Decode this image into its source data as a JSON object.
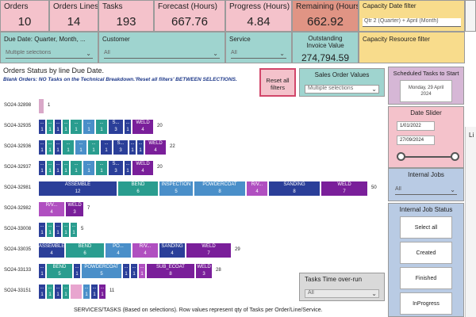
{
  "kpis": {
    "orders": {
      "label": "Orders",
      "value": "10"
    },
    "order_lines": {
      "label": "Orders Lines",
      "value": "14"
    },
    "tasks": {
      "label": "Tasks",
      "value": "193"
    },
    "forecast": {
      "label": "Forecast (Hours)",
      "value": "667.76"
    },
    "progress": {
      "label": "Progress (Hours)",
      "value": "4.84"
    },
    "remaining": {
      "label": "Remaining (Hours)",
      "value": "662.92"
    }
  },
  "capacity_date_filter": {
    "label": "Capacity Date filter",
    "value": "Qtr 2 (Quarter) + April (Month)"
  },
  "filters": {
    "due_date": {
      "label": "Due Date: Quarter, Month, ...",
      "value": "Multiple selections"
    },
    "customer": {
      "label": "Customer",
      "value": "All"
    },
    "service": {
      "label": "Service",
      "value": "All"
    }
  },
  "outstanding_invoice": {
    "label": "Outstanding Invoice Value",
    "value": "274,794.59"
  },
  "capacity_resource_filter": {
    "label": "Capacity Resource filter"
  },
  "orders_status_title": "Orders Status by line Due Date.",
  "blank_orders_note": "Blank Orders: NO Tasks on the Technical Breakdown.'Reset all filters' BETWEEN SELECTIONS.",
  "reset_button": "Reset all filters",
  "sales_order_values": {
    "label": "Sales Order Values",
    "value": "Multiple selections"
  },
  "scheduled_tasks": {
    "label": "Scheduled Tasks to Start",
    "date": "Monday, 29 April 2024"
  },
  "date_slider": {
    "label": "Date Slider",
    "from": "1/01/2022",
    "to": "27/09/2024"
  },
  "internal_jobs": {
    "label": "Internal Jobs",
    "value": "All"
  },
  "internal_job_status": {
    "label": "Internal Job Status",
    "options": [
      "Select all",
      "Created",
      "Finished",
      "InProgress"
    ]
  },
  "tasks_time_overrun": {
    "label": "Tasks Time over-run",
    "value": "All"
  },
  "footer_note": "SERVICES/TASKS (Based on selections). Row values represent qty of Tasks per Order/Line/Service.",
  "right_edge_letter": "Li",
  "rows": [
    {
      "id": "SO24-32898",
      "total": "1",
      "segs": [
        {
          "c": "#d9a8c8",
          "n": "",
          "v": "",
          "w": 8
        }
      ]
    },
    {
      "id": "SO24-32935",
      "total": "20",
      "segs": [
        {
          "c": "#2b3f99",
          "n": "...",
          "v": "1",
          "w": 10
        },
        {
          "c": "#2a9d8f",
          "n": "...",
          "v": "1",
          "w": 10
        },
        {
          "c": "#2b3f99",
          "n": "...",
          "v": "1",
          "w": 10
        },
        {
          "c": "#2a9d8f",
          "n": "...",
          "v": "1",
          "w": 10
        },
        {
          "c": "#2a9d8f",
          "n": "...",
          "v": "1",
          "w": 16
        },
        {
          "c": "#4a8fc9",
          "n": "...",
          "v": "1",
          "w": 16
        },
        {
          "c": "#2a9d8f",
          "n": "...",
          "v": "1",
          "w": 16
        },
        {
          "c": "#2b3f99",
          "n": "S...",
          "v": "3",
          "w": 20
        },
        {
          "c": "#2b3f99",
          "n": "...",
          "v": "1",
          "w": 10
        },
        {
          "c": "#7a1f9a",
          "n": "WELD",
          "v": "4",
          "w": 28
        }
      ]
    },
    {
      "id": "SO24-32936",
      "total": "22",
      "segs": [
        {
          "c": "#2b3f99",
          "n": "...",
          "v": "1",
          "w": 10
        },
        {
          "c": "#2a9d8f",
          "n": "...",
          "v": "1",
          "w": 10
        },
        {
          "c": "#2b3f99",
          "n": "...",
          "v": "1",
          "w": 10
        },
        {
          "c": "#2a9d8f",
          "n": "...",
          "v": "1",
          "w": 16
        },
        {
          "c": "#4a8fc9",
          "n": "...",
          "v": "1",
          "w": 16
        },
        {
          "c": "#2a9d8f",
          "n": "...",
          "v": "1",
          "w": 16
        },
        {
          "c": "#2b3f99",
          "n": "...",
          "v": "1",
          "w": 16
        },
        {
          "c": "#2b3f99",
          "n": "S...",
          "v": "3",
          "w": 20
        },
        {
          "c": "#2b3f99",
          "n": "...",
          "v": "1",
          "w": 10
        },
        {
          "c": "#2b3f99",
          "n": "...",
          "v": "1",
          "w": 10
        },
        {
          "c": "#7a1f9a",
          "n": "WELD",
          "v": "4",
          "w": 28
        }
      ]
    },
    {
      "id": "SO24-32937",
      "total": "20",
      "segs": [
        {
          "c": "#2b3f99",
          "n": "...",
          "v": "1",
          "w": 10
        },
        {
          "c": "#2a9d8f",
          "n": "...",
          "v": "1",
          "w": 10
        },
        {
          "c": "#2b3f99",
          "n": "...",
          "v": "1",
          "w": 10
        },
        {
          "c": "#2a9d8f",
          "n": "...",
          "v": "1",
          "w": 10
        },
        {
          "c": "#2a9d8f",
          "n": "...",
          "v": "1",
          "w": 16
        },
        {
          "c": "#4a8fc9",
          "n": "...",
          "v": "1",
          "w": 16
        },
        {
          "c": "#2a9d8f",
          "n": "...",
          "v": "1",
          "w": 16
        },
        {
          "c": "#2b3f99",
          "n": "S...",
          "v": "3",
          "w": 20
        },
        {
          "c": "#2b3f99",
          "n": "...",
          "v": "1",
          "w": 10
        },
        {
          "c": "#7a1f9a",
          "n": "WELD",
          "v": "4",
          "w": 28
        }
      ]
    },
    {
      "id": "SO24-32981",
      "total": "50",
      "segs": [
        {
          "c": "#2b3f99",
          "n": "ASSEMBLE",
          "v": "12",
          "w": 100
        },
        {
          "c": "#2a9d8f",
          "n": "BEND",
          "v": "6",
          "w": 52
        },
        {
          "c": "#4a8fc9",
          "n": "INSPECTION",
          "v": "5",
          "w": 44
        },
        {
          "c": "#4a8fc9",
          "n": "POWDERCOAT",
          "v": "8",
          "w": 66
        },
        {
          "c": "#b04fc0",
          "n": "R/V...",
          "v": "4",
          "w": 28
        },
        {
          "c": "#2b3f99",
          "n": "SANDING",
          "v": "8",
          "w": 66
        },
        {
          "c": "#7a1f9a",
          "n": "WELD",
          "v": "7",
          "w": 60
        }
      ]
    },
    {
      "id": "SO24-32982",
      "total": "7",
      "segs": [
        {
          "c": "#b04fc0",
          "n": "R/V...",
          "v": "4",
          "w": 34
        },
        {
          "c": "#7a1f9a",
          "n": "WELD",
          "v": "3",
          "w": 24
        }
      ]
    },
    {
      "id": "SO24-33008",
      "total": "5",
      "segs": [
        {
          "c": "#2b3f99",
          "n": "...",
          "v": "1",
          "w": 10
        },
        {
          "c": "#2a9d8f",
          "n": "...",
          "v": "1",
          "w": 10
        },
        {
          "c": "#2b3f99",
          "n": "...",
          "v": "1",
          "w": 10
        },
        {
          "c": "#2a9d8f",
          "n": "...",
          "v": "1",
          "w": 10
        },
        {
          "c": "#2a9d8f",
          "n": "...",
          "v": "1",
          "w": 10
        }
      ]
    },
    {
      "id": "SO24-33035",
      "total": "29",
      "segs": [
        {
          "c": "#2b3f99",
          "n": "ASSEMBLE",
          "v": "4",
          "w": 34
        },
        {
          "c": "#2a9d8f",
          "n": "BEND",
          "v": "6",
          "w": 50
        },
        {
          "c": "#4a8fc9",
          "n": "PO...",
          "v": "4",
          "w": 34
        },
        {
          "c": "#b04fc0",
          "n": "R/V...",
          "v": "4",
          "w": 34
        },
        {
          "c": "#2b3f99",
          "n": "SANDING",
          "v": "4",
          "w": 34
        },
        {
          "c": "#7a1f9a",
          "n": "WELD",
          "v": "7",
          "w": 58
        }
      ]
    },
    {
      "id": "SO24-33133",
      "total": "28",
      "segs": [
        {
          "c": "#2b3f99",
          "n": "...",
          "v": "1",
          "w": 10
        },
        {
          "c": "#2a9d8f",
          "n": "BEND",
          "v": "5",
          "w": 34
        },
        {
          "c": "#2b3f99",
          "n": "...",
          "v": "1",
          "w": 10
        },
        {
          "c": "#4a8fc9",
          "n": "POWDERCOAT",
          "v": "5",
          "w": 52
        },
        {
          "c": "#2b3f99",
          "n": "...",
          "v": "1",
          "w": 10
        },
        {
          "c": "#2b3f99",
          "n": "...",
          "v": "1",
          "w": 10
        },
        {
          "c": "#b04fc0",
          "n": "...",
          "v": "1",
          "w": 10
        },
        {
          "c": "#7a1f9a",
          "n": "SUB_ECOAT",
          "v": "8",
          "w": 62
        },
        {
          "c": "#7a1f9a",
          "n": "WELD",
          "v": "3",
          "w": 22
        }
      ]
    },
    {
      "id": "SO24-33151",
      "total": "11",
      "segs": [
        {
          "c": "#2b3f99",
          "n": "...",
          "v": "1",
          "w": 10
        },
        {
          "c": "#2a9d8f",
          "n": "...",
          "v": "1",
          "w": 10
        },
        {
          "c": "#2b3f99",
          "n": "...",
          "v": "1",
          "w": 10
        },
        {
          "c": "#2a9d8f",
          "n": "...",
          "v": "1",
          "w": 10
        },
        {
          "c": "#e8a5cf",
          "n": "",
          "v": "",
          "w": 16
        },
        {
          "c": "#4a8fc9",
          "n": "...",
          "v": "1",
          "w": 10
        },
        {
          "c": "#2b3f99",
          "n": "...",
          "v": "1",
          "w": 10
        },
        {
          "c": "#7a1f9a",
          "n": "...",
          "v": "1",
          "w": 10
        }
      ]
    }
  ]
}
